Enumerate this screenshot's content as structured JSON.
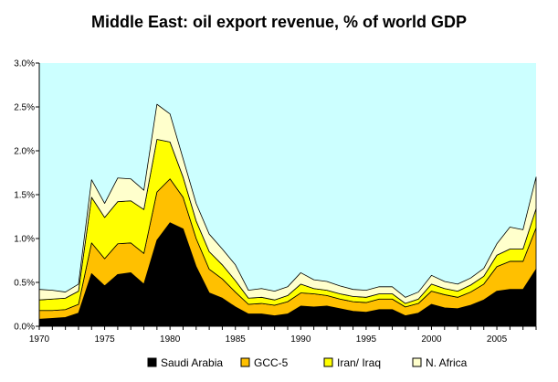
{
  "chart_data": {
    "type": "area",
    "stacked": true,
    "title": "Middle East: oil export revenue, % of world GDP",
    "xlabel": "",
    "ylabel": "",
    "x": [
      1970,
      1971,
      1972,
      1973,
      1974,
      1975,
      1976,
      1977,
      1978,
      1979,
      1980,
      1981,
      1982,
      1983,
      1984,
      1985,
      1986,
      1987,
      1988,
      1989,
      1990,
      1991,
      1992,
      1993,
      1994,
      1995,
      1996,
      1997,
      1998,
      1999,
      2000,
      2001,
      2002,
      2003,
      2004,
      2005,
      2006,
      2007,
      2008
    ],
    "xlim": [
      1970,
      2008
    ],
    "ylim": [
      0,
      0.03
    ],
    "x_ticks": [
      "1970",
      "1975",
      "1980",
      "1985",
      "1990",
      "1995",
      "2000",
      "2005"
    ],
    "y_ticks": [
      "0.0%",
      "0.5%",
      "1.0%",
      "1.5%",
      "2.0%",
      "2.5%",
      "3.0%"
    ],
    "plot_background": "#CCFFFF",
    "legend_position": "bottom",
    "series": [
      {
        "name": "Saudi Arabia",
        "color": "#000000",
        "values": [
          0.0008,
          0.0009,
          0.001,
          0.0015,
          0.006,
          0.0046,
          0.0059,
          0.0061,
          0.0048,
          0.0098,
          0.0118,
          0.0111,
          0.0068,
          0.0038,
          0.0032,
          0.0022,
          0.0014,
          0.0014,
          0.0012,
          0.0014,
          0.0023,
          0.0022,
          0.0023,
          0.002,
          0.0017,
          0.0016,
          0.0019,
          0.0019,
          0.0012,
          0.0015,
          0.0025,
          0.0021,
          0.002,
          0.0024,
          0.003,
          0.004,
          0.0042,
          0.0042,
          0.0065
        ]
      },
      {
        "name": "GCC-5",
        "color": "#FFC000",
        "values": [
          0.001,
          0.0009,
          0.0009,
          0.001,
          0.0035,
          0.0031,
          0.0035,
          0.0034,
          0.0035,
          0.0055,
          0.005,
          0.0036,
          0.0032,
          0.0027,
          0.0022,
          0.0017,
          0.0011,
          0.0012,
          0.0012,
          0.0014,
          0.0015,
          0.0015,
          0.0012,
          0.0011,
          0.0011,
          0.0011,
          0.0012,
          0.0012,
          0.001,
          0.0011,
          0.0015,
          0.0015,
          0.0013,
          0.0015,
          0.0018,
          0.0028,
          0.0032,
          0.0032,
          0.0047
        ]
      },
      {
        "name": "Iran/ Iraq",
        "color": "#FFFF00",
        "values": [
          0.0012,
          0.0013,
          0.0013,
          0.0015,
          0.0052,
          0.0047,
          0.0048,
          0.0048,
          0.005,
          0.006,
          0.0042,
          0.0023,
          0.002,
          0.002,
          0.0016,
          0.0013,
          0.0007,
          0.0007,
          0.0006,
          0.0007,
          0.001,
          0.0006,
          0.0006,
          0.0006,
          0.0006,
          0.0006,
          0.0006,
          0.0006,
          0.0004,
          0.0005,
          0.0008,
          0.0007,
          0.0007,
          0.0008,
          0.0009,
          0.0013,
          0.0014,
          0.0014,
          0.0022
        ]
      },
      {
        "name": "N. Africa",
        "color": "#FFFFCC",
        "values": [
          0.0012,
          0.001,
          0.0007,
          0.0008,
          0.002,
          0.0016,
          0.0027,
          0.0025,
          0.0022,
          0.004,
          0.0032,
          0.0021,
          0.002,
          0.002,
          0.0018,
          0.0018,
          0.0009,
          0.001,
          0.001,
          0.001,
          0.0013,
          0.001,
          0.001,
          0.0009,
          0.0008,
          0.0008,
          0.0008,
          0.0008,
          0.0007,
          0.0008,
          0.001,
          0.0008,
          0.0008,
          0.0008,
          0.0009,
          0.0013,
          0.0025,
          0.0022,
          0.0036
        ]
      }
    ]
  }
}
